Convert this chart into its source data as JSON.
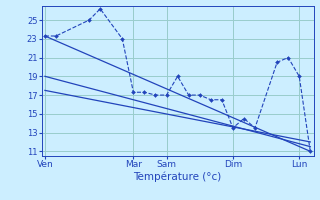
{
  "background_color": "#cceeff",
  "grid_color": "#99cccc",
  "line_color": "#2244bb",
  "xlabel": "Température (°c)",
  "ylim": [
    10.5,
    26.5
  ],
  "yticks": [
    11,
    13,
    15,
    17,
    19,
    21,
    23,
    25
  ],
  "x_day_labels": [
    "Ven",
    "Mar",
    "Sam",
    "Dim",
    "Lun"
  ],
  "x_day_positions": [
    0,
    8,
    11,
    17,
    23
  ],
  "xlim": [
    -0.3,
    24.3
  ],
  "series1_x": [
    0,
    1,
    4,
    5,
    7,
    8,
    9,
    10,
    11,
    12,
    13,
    14,
    15,
    16,
    17,
    18,
    19,
    21,
    22,
    23,
    24
  ],
  "series1_y": [
    23.3,
    23.3,
    25.0,
    26.2,
    23.0,
    17.3,
    17.3,
    17.0,
    17.0,
    19.0,
    17.0,
    17.0,
    16.5,
    16.5,
    13.5,
    14.5,
    13.5,
    20.5,
    21.0,
    19.0,
    11.0
  ],
  "series2_x": [
    0,
    24
  ],
  "series2_y": [
    23.3,
    11.0
  ],
  "series3_x": [
    0,
    24
  ],
  "series3_y": [
    19.0,
    11.5
  ],
  "series4_x": [
    0,
    24
  ],
  "series4_y": [
    17.5,
    12.0
  ]
}
